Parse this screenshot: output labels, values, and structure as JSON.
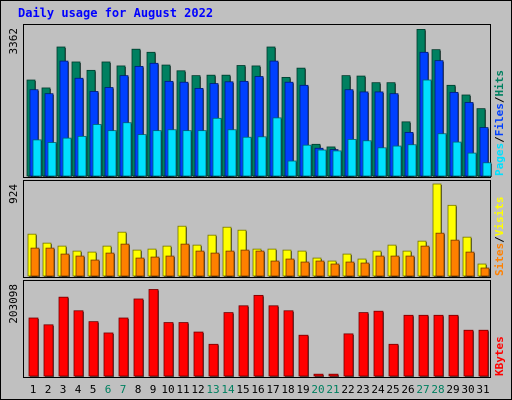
{
  "chart_data": [
    {
      "type": "bar",
      "title": "Daily usage for August 2022",
      "panel": "hits-files-pages",
      "max_label": "3362",
      "ylim": [
        0,
        3362
      ],
      "legend": [
        {
          "text": "Pages",
          "color": "#00e0ff"
        },
        {
          "text": "Files",
          "color": "#0040ff"
        },
        {
          "text": "Hits",
          "color": "#008060"
        }
      ],
      "categories": [
        "1",
        "2",
        "3",
        "4",
        "5",
        "6",
        "7",
        "8",
        "9",
        "10",
        "11",
        "12",
        "13",
        "14",
        "15",
        "16",
        "17",
        "18",
        "19",
        "20",
        "21",
        "22",
        "23",
        "24",
        "25",
        "26",
        "27",
        "28",
        "29",
        "30",
        "31"
      ],
      "weekend_days": [
        "6",
        "7",
        "13",
        "14",
        "20",
        "21",
        "27",
        "28"
      ],
      "series": [
        {
          "name": "Hits",
          "color": "#008060",
          "values": [
            2180,
            2000,
            2930,
            2590,
            2400,
            2590,
            2500,
            2880,
            2810,
            2520,
            2390,
            2280,
            2290,
            2290,
            2510,
            2500,
            2930,
            2240,
            2450,
            720,
            660,
            2280,
            2270,
            2120,
            2120,
            1230,
            3330,
            2870,
            2060,
            1840,
            1530
          ]
        },
        {
          "name": "Files",
          "color": "#0040ff",
          "values": [
            1960,
            1870,
            2610,
            2220,
            1920,
            2010,
            2280,
            2490,
            2560,
            2150,
            2130,
            1990,
            2100,
            2140,
            2150,
            2260,
            2610,
            2130,
            2060,
            630,
            600,
            1960,
            1910,
            1910,
            1870,
            990,
            2810,
            2620,
            1900,
            1670,
            1100
          ]
        },
        {
          "name": "Pages",
          "color": "#00e0ff",
          "values": [
            820,
            760,
            860,
            900,
            1170,
            1030,
            1210,
            940,
            1030,
            1050,
            1030,
            1030,
            1310,
            1050,
            880,
            890,
            1320,
            340,
            700,
            590,
            570,
            830,
            800,
            640,
            680,
            710,
            2180,
            960,
            770,
            520,
            300
          ]
        }
      ]
    },
    {
      "type": "bar",
      "panel": "sites-visits",
      "max_label": "924",
      "ylim": [
        0,
        924
      ],
      "legend": [
        {
          "text": "Sites",
          "color": "#ff8000"
        },
        {
          "text": "Visits",
          "color": "#ffff00"
        }
      ],
      "categories": [
        "1",
        "2",
        "3",
        "4",
        "5",
        "6",
        "7",
        "8",
        "9",
        "10",
        "11",
        "12",
        "13",
        "14",
        "15",
        "16",
        "17",
        "18",
        "19",
        "20",
        "21",
        "22",
        "23",
        "24",
        "25",
        "26",
        "27",
        "28",
        "29",
        "30",
        "31"
      ],
      "series": [
        {
          "name": "Visits",
          "color": "#ffff00",
          "values": [
            420,
            330,
            300,
            250,
            240,
            300,
            440,
            260,
            270,
            300,
            500,
            310,
            410,
            490,
            460,
            270,
            270,
            260,
            250,
            180,
            150,
            220,
            170,
            250,
            310,
            250,
            350,
            924,
            710,
            390,
            120
          ]
        },
        {
          "name": "Sites",
          "color": "#ff8000",
          "values": [
            280,
            280,
            220,
            200,
            160,
            230,
            320,
            180,
            190,
            200,
            320,
            250,
            230,
            250,
            260,
            250,
            150,
            170,
            140,
            150,
            120,
            140,
            130,
            200,
            200,
            200,
            300,
            430,
            360,
            240,
            80
          ]
        }
      ]
    },
    {
      "type": "bar",
      "panel": "kbytes",
      "max_label": "203098",
      "ylim": [
        0,
        203098
      ],
      "legend": [
        {
          "text": "KBytes",
          "color": "#ff0000"
        }
      ],
      "categories": [
        "1",
        "2",
        "3",
        "4",
        "5",
        "6",
        "7",
        "8",
        "9",
        "10",
        "11",
        "12",
        "13",
        "14",
        "15",
        "16",
        "17",
        "18",
        "19",
        "20",
        "21",
        "22",
        "23",
        "24",
        "25",
        "26",
        "27",
        "28",
        "29",
        "30",
        "31"
      ],
      "series": [
        {
          "name": "KBytes",
          "color": "#ff0000",
          "values": [
            128000,
            113000,
            174000,
            144000,
            120000,
            95000,
            128000,
            170000,
            191000,
            118000,
            118000,
            97000,
            70000,
            140000,
            155000,
            178000,
            155000,
            144000,
            90000,
            4000,
            4000,
            93000,
            140000,
            143000,
            70000,
            134000,
            134000,
            134000,
            134000,
            101000,
            101000
          ]
        }
      ]
    }
  ]
}
